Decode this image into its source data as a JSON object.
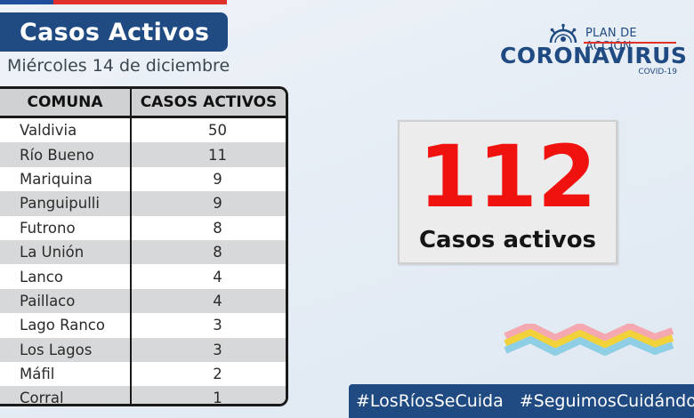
{
  "header": {
    "title": "Casos Activos",
    "date": "Miércoles 14 de diciembre"
  },
  "table": {
    "headers": [
      "COMUNA",
      "CASOS ACTIVOS"
    ],
    "rows": [
      {
        "comuna": "Valdivia",
        "casos": "50"
      },
      {
        "comuna": "Río Bueno",
        "casos": "11"
      },
      {
        "comuna": "Mariquina",
        "casos": "9"
      },
      {
        "comuna": "Panguipulli",
        "casos": "9"
      },
      {
        "comuna": "Futrono",
        "casos": "8"
      },
      {
        "comuna": "La Unión",
        "casos": "8"
      },
      {
        "comuna": "Lanco",
        "casos": "4"
      },
      {
        "comuna": "Paillaco",
        "casos": "4"
      },
      {
        "comuna": "Lago Ranco",
        "casos": "3"
      },
      {
        "comuna": "Los Lagos",
        "casos": "3"
      },
      {
        "comuna": "Máfil",
        "casos": "2"
      },
      {
        "comuna": "Corral",
        "casos": "1"
      }
    ]
  },
  "logo": {
    "plan": "PLAN DE ACCIÓN",
    "name": "CORONAVIRUS",
    "sub": "COVID-19",
    "icon": "virus-icon"
  },
  "summary": {
    "total": "112",
    "label": "Casos activos"
  },
  "hashtags": [
    "#LosRíosSeCuida",
    "#SeguimosCuidándonos"
  ],
  "colors": {
    "navy": "#1f4a82",
    "red": "#f0120f",
    "row_gray": "#d7d8d9"
  }
}
